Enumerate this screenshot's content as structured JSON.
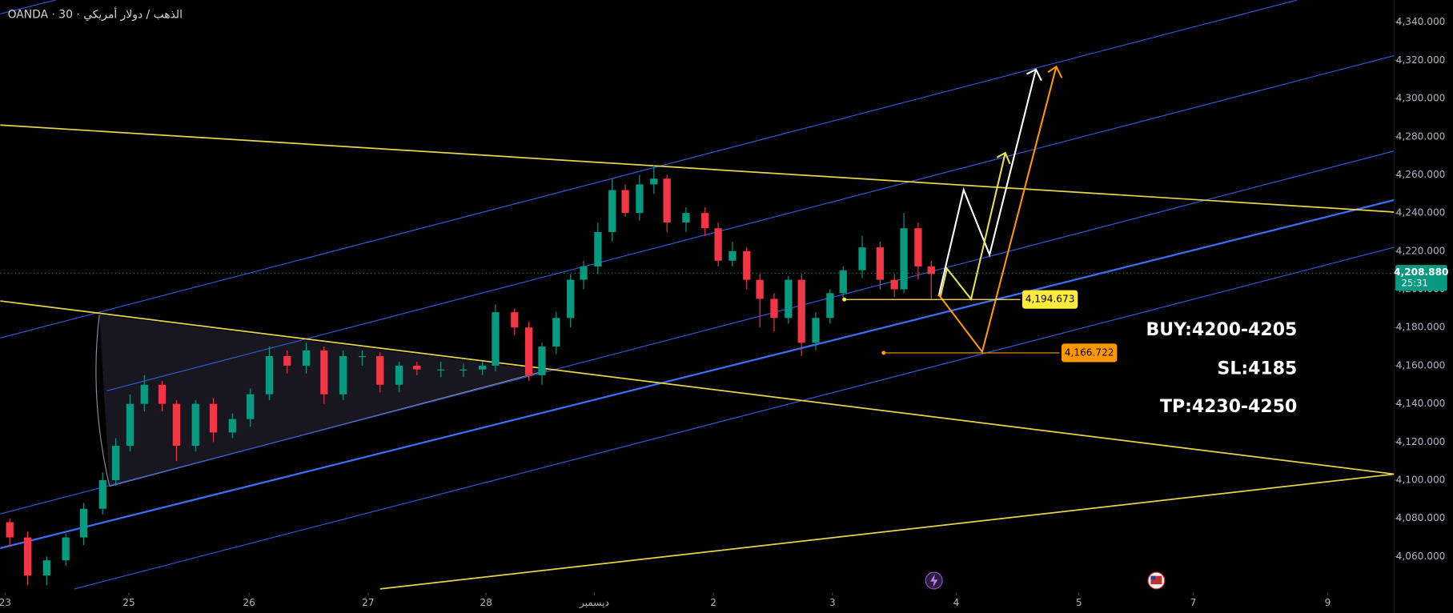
{
  "chart_data": {
    "type": "candlestick",
    "title": "OANDA · 30 · الذهب / دولار أمريكي",
    "x": [
      0.04,
      0.19,
      0.35,
      0.51,
      0.66,
      0.82,
      0.93,
      1.05,
      1.17,
      1.32,
      1.44,
      1.6,
      1.75,
      1.91,
      2.06,
      2.22,
      2.37,
      2.53,
      2.68,
      2.84,
      3.0,
      3.15,
      3.31,
      3.46,
      3.66,
      3.85,
      4.01,
      4.12,
      4.28,
      4.4,
      4.51,
      4.63,
      4.75,
      4.86,
      4.98,
      5.1,
      5.21,
      5.33,
      5.45,
      5.56,
      5.72,
      5.88,
      5.99,
      6.11,
      6.23,
      6.34,
      6.46,
      6.58,
      6.69,
      6.81,
      6.93,
      7.04,
      7.2,
      7.35,
      7.47,
      7.55,
      7.67,
      7.78
    ],
    "open": [
      4078,
      4070,
      4050,
      4058,
      4070,
      4085,
      4100,
      4118,
      4140,
      4150,
      4140,
      4118,
      4140,
      4125,
      4132,
      4145,
      4165,
      4160,
      4168,
      4145,
      4165,
      4165,
      4150,
      4160,
      4158,
      4158,
      4158,
      4160,
      4188,
      4180,
      4155,
      4170,
      4185,
      4205,
      4212,
      4230,
      4252,
      4240,
      4255,
      4258,
      4235,
      4240,
      4232,
      4215,
      4220,
      4205,
      4195,
      4185,
      4205,
      4172,
      4185,
      4198,
      4210,
      4222,
      4205,
      4200,
      4232,
      4212
    ],
    "high": [
      4080,
      4073,
      4060,
      4072,
      4088,
      4104,
      4122,
      4145,
      4155,
      4152,
      4142,
      4142,
      4143,
      4135,
      4148,
      4170,
      4168,
      4172,
      4170,
      4168,
      4168,
      4167,
      4162,
      4162,
      4162,
      4161,
      4162,
      4192,
      4190,
      4183,
      4172,
      4188,
      4208,
      4215,
      4235,
      4258,
      4255,
      4260,
      4265,
      4260,
      4243,
      4243,
      4235,
      4225,
      4222,
      4208,
      4198,
      4207,
      4208,
      4188,
      4200,
      4212,
      4228,
      4225,
      4208,
      4240,
      4235,
      4215
    ],
    "low": [
      4065,
      4045,
      4045,
      4055,
      4066,
      4082,
      4097,
      4115,
      4136,
      4136,
      4110,
      4115,
      4120,
      4122,
      4128,
      4142,
      4156,
      4156,
      4140,
      4142,
      4160,
      4146,
      4146,
      4155,
      4154,
      4154,
      4155,
      4157,
      4176,
      4152,
      4150,
      4166,
      4180,
      4200,
      4208,
      4225,
      4238,
      4236,
      4250,
      4230,
      4230,
      4228,
      4212,
      4212,
      4200,
      4180,
      4178,
      4182,
      4165,
      4168,
      4182,
      4195,
      4206,
      4200,
      4196,
      4198,
      4205,
      4195
    ],
    "close": [
      4070,
      4050,
      4058,
      4070,
      4085,
      4100,
      4118,
      4140,
      4150,
      4140,
      4118,
      4140,
      4125,
      4132,
      4145,
      4165,
      4160,
      4168,
      4145,
      4165,
      4165,
      4150,
      4160,
      4158,
      4158,
      4158,
      4160,
      4188,
      4180,
      4155,
      4170,
      4185,
      4205,
      4212,
      4230,
      4252,
      4240,
      4255,
      4258,
      4235,
      4240,
      4232,
      4215,
      4220,
      4205,
      4195,
      4185,
      4205,
      4172,
      4185,
      4198,
      4210,
      4222,
      4205,
      4200,
      4232,
      4212,
      4208
    ],
    "up_color": "#089981",
    "down_color": "#f23645",
    "xlim": [
      -0.04,
      11.67
    ],
    "ylim": [
      4043.5,
      4351.6
    ],
    "xticks": [
      {
        "value": 0,
        "label": "23"
      },
      {
        "value": 1.04,
        "label": "25"
      },
      {
        "value": 2.05,
        "label": "26"
      },
      {
        "value": 3.05,
        "label": "27"
      },
      {
        "value": 4.04,
        "label": "28"
      },
      {
        "value": 4.95,
        "label": "ديسمبر"
      },
      {
        "value": 5.95,
        "label": "2"
      },
      {
        "value": 6.95,
        "label": "3"
      },
      {
        "value": 7.99,
        "label": "4"
      },
      {
        "value": 9.02,
        "label": "5"
      },
      {
        "value": 9.98,
        "label": "7"
      },
      {
        "value": 11.11,
        "label": "9"
      }
    ],
    "yticks": [
      {
        "value": 4060,
        "label": "4,060.000"
      },
      {
        "value": 4080,
        "label": "4,080.000"
      },
      {
        "value": 4100,
        "label": "4,100.000"
      },
      {
        "value": 4120,
        "label": "4,120.000"
      },
      {
        "value": 4140,
        "label": "4,140.000"
      },
      {
        "value": 4160,
        "label": "4,160.000"
      },
      {
        "value": 4180,
        "label": "4,180.000"
      },
      {
        "value": 4200,
        "label": "4,200.000"
      },
      {
        "value": 4220,
        "label": "4,220.000"
      },
      {
        "value": 4240,
        "label": "4,240.000"
      },
      {
        "value": 4260,
        "label": "4,260.000"
      },
      {
        "value": 4280,
        "label": "4,280.000"
      },
      {
        "value": 4300,
        "label": "4,300.000"
      },
      {
        "value": 4320,
        "label": "4,320.000"
      },
      {
        "value": 4340,
        "label": "4,340.000"
      }
    ],
    "last_price": {
      "value": 4208.88,
      "label": "4,208.880",
      "countdown": "25:31",
      "color": "#089981"
    },
    "levels": [
      {
        "value": 4194.673,
        "label": "4,194.673",
        "color": "#ffeb3b",
        "start": 7.05
      },
      {
        "value": 4166.722,
        "label": "4,166.722",
        "color": "#ff9800",
        "start": 7.38
      }
    ],
    "annotations": [
      "BUY:4200-4205",
      "SL:4185",
      "TP:4230-4250"
    ]
  }
}
